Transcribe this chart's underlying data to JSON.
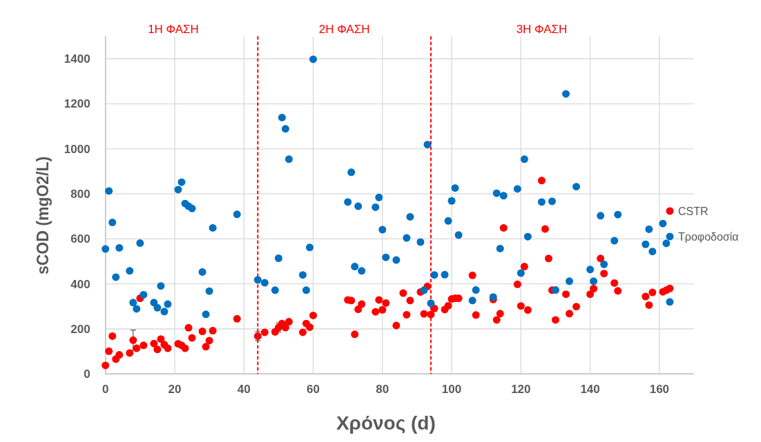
{
  "chart_data": {
    "type": "scatter",
    "xlabel": "Χρόνος (d)",
    "ylabel": "sCOD (mgO2/L)",
    "xlim": [
      0,
      170
    ],
    "xticks": [
      0,
      20,
      40,
      60,
      80,
      100,
      120,
      140,
      160
    ],
    "ylim": [
      0,
      1500
    ],
    "yticks": [
      0,
      200,
      400,
      600,
      800,
      1000,
      1200,
      1400
    ],
    "grid": true,
    "legend": "right",
    "marker": "circle",
    "annotations": [
      "1Η ΦΑΣΗ",
      "2Η ΦΑΣΗ",
      "3Η ΦΑΣΗ"
    ],
    "ref_lines": [
      {
        "axis": "x",
        "value": 44,
        "label": null,
        "color": "#ff0000",
        "line_style": "dashed"
      },
      {
        "axis": "x",
        "value": 94,
        "label": null,
        "color": "#ff0000",
        "line_style": "dashed"
      }
    ],
    "series": [
      {
        "name": "CSTR",
        "color": "#ff0000",
        "x": [
          0,
          1,
          2,
          3,
          4,
          7,
          8,
          9,
          10,
          11,
          14,
          15,
          16,
          17,
          18,
          21,
          22,
          23,
          24,
          25,
          28,
          29,
          30,
          31,
          38,
          44,
          46,
          49,
          50,
          51,
          52,
          53,
          57,
          58,
          59,
          60,
          70,
          71,
          72,
          73,
          74,
          78,
          79,
          80,
          81,
          84,
          86,
          87,
          88,
          91,
          92,
          93,
          94,
          95,
          98,
          99,
          100,
          101,
          102,
          106,
          107,
          112,
          113,
          114,
          115,
          119,
          120,
          121,
          122,
          126,
          127,
          128,
          129,
          130,
          133,
          134,
          136,
          140,
          141,
          143,
          144,
          147,
          148,
          156,
          157,
          158,
          161,
          162,
          163
        ],
        "values": [
          38,
          101,
          168,
          66,
          85,
          93,
          150,
          114,
          336,
          127,
          135,
          109,
          155,
          130,
          114,
          134,
          127,
          114,
          205,
          160,
          189,
          121,
          148,
          192,
          245,
          168,
          185,
          187,
          206,
          224,
          206,
          232,
          185,
          224,
          208,
          260,
          329,
          326,
          176,
          287,
          310,
          276,
          329,
          285,
          315,
          215,
          359,
          263,
          326,
          364,
          267,
          389,
          264,
          291,
          286,
          303,
          333,
          336,
          336,
          438,
          262,
          331,
          240,
          268,
          649,
          398,
          302,
          477,
          284,
          859,
          644,
          513,
          372,
          240,
          354,
          268,
          299,
          354,
          379,
          513,
          446,
          404,
          369,
          344,
          306,
          362,
          365,
          372,
          380
        ],
        "errors": [
          null,
          null,
          null,
          null,
          null,
          null,
          45,
          null,
          null,
          null,
          null,
          null,
          null,
          null,
          null,
          null,
          null,
          null,
          null,
          null,
          null,
          null,
          null,
          null,
          null,
          20,
          null,
          null,
          20,
          null,
          null,
          null,
          null,
          null,
          null,
          null,
          null,
          null,
          null,
          null,
          null,
          null,
          null,
          null,
          null,
          null,
          null,
          null,
          null,
          null,
          null,
          null,
          null,
          null,
          null,
          null,
          null,
          null,
          null,
          null,
          null,
          null,
          null,
          null,
          null,
          null,
          null,
          null,
          null,
          null,
          null,
          null,
          null,
          null,
          null,
          null,
          null,
          null,
          null,
          null,
          null,
          null,
          null,
          null,
          null,
          null,
          null,
          null,
          null
        ]
      },
      {
        "name": "Τροφοδοσία",
        "color": "#0070c0",
        "x": [
          0,
          1,
          2,
          3,
          4,
          7,
          8,
          9,
          10,
          11,
          14,
          15,
          16,
          17,
          18,
          21,
          22,
          23,
          24,
          25,
          28,
          29,
          30,
          31,
          38,
          44,
          46,
          49,
          50,
          51,
          52,
          53,
          57,
          58,
          59,
          60,
          70,
          71,
          72,
          73,
          74,
          78,
          79,
          80,
          81,
          84,
          87,
          88,
          91,
          92,
          93,
          94,
          95,
          98,
          99,
          100,
          101,
          102,
          106,
          107,
          112,
          113,
          114,
          115,
          119,
          120,
          121,
          122,
          126,
          129,
          130,
          133,
          134,
          136,
          140,
          141,
          143,
          144,
          147,
          148,
          156,
          157,
          158,
          161,
          162,
          163
        ],
        "values": [
          555,
          813,
          673,
          430,
          560,
          458,
          317,
          289,
          581,
          352,
          317,
          294,
          391,
          277,
          310,
          819,
          852,
          757,
          745,
          735,
          453,
          265,
          368,
          649,
          709,
          418,
          405,
          372,
          514,
          1139,
          1089,
          954,
          440,
          372,
          562,
          1398,
          764,
          896,
          477,
          745,
          458,
          741,
          784,
          641,
          518,
          506,
          604,
          698,
          586,
          372,
          1019,
          314,
          440,
          441,
          680,
          769,
          826,
          617,
          326,
          373,
          342,
          803,
          557,
          792,
          822,
          448,
          954,
          610,
          764,
          767,
          373,
          1244,
          412,
          832,
          464,
          412,
          703,
          487,
          592,
          708,
          576,
          643,
          544,
          668,
          580,
          320
        ]
      }
    ]
  }
}
